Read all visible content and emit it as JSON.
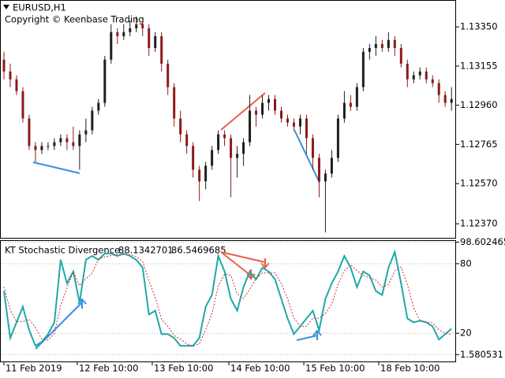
{
  "chart_data": [
    {
      "type": "candlestick",
      "title": "EURUSD,H1",
      "subtitle": "Copyright © Keenbase Trading",
      "up_color": "#1e1e1e",
      "down_color": "#8b1a1a",
      "open": [
        1.13187,
        1.13128,
        1.13089,
        1.1303,
        1.12894,
        1.12757,
        1.12737,
        1.12757,
        1.12757,
        1.12776,
        1.12796,
        1.12776,
        1.12757,
        1.12815,
        1.12835,
        1.12933,
        1.12972,
        1.13187,
        1.13324,
        1.13304,
        1.13324,
        1.13343,
        1.13363,
        1.13343,
        1.13245,
        1.13304,
        1.13167,
        1.1305,
        1.12894,
        1.12815,
        1.12757,
        1.12639,
        1.12581,
        1.12659,
        1.12737,
        1.12815,
        1.12796,
        1.12698,
        1.12718,
        1.12776,
        1.12933,
        1.12913,
        1.12972,
        1.12991,
        1.12933,
        1.12894,
        1.12874,
        1.12854,
        1.12894,
        1.12796,
        1.12698,
        1.12581,
        1.1262,
        1.12698,
        1.12894,
        1.12972,
        1.12952,
        1.1305,
        1.13226,
        1.13245,
        1.13265,
        1.13245,
        1.13285,
        1.13245,
        1.13167,
        1.13089,
        1.13109,
        1.13128,
        1.13089,
        1.1307,
        1.13011,
        1.12972
      ],
      "close": [
        1.13128,
        1.13089,
        1.1303,
        1.12894,
        1.12757,
        1.12737,
        1.12757,
        1.12757,
        1.12776,
        1.12796,
        1.12776,
        1.12757,
        1.12815,
        1.12835,
        1.12933,
        1.12972,
        1.13187,
        1.13324,
        1.13304,
        1.13324,
        1.13343,
        1.13363,
        1.13343,
        1.13245,
        1.13304,
        1.13167,
        1.1305,
        1.12894,
        1.12815,
        1.12757,
        1.12639,
        1.12581,
        1.12659,
        1.12737,
        1.12815,
        1.12796,
        1.12698,
        1.12718,
        1.12776,
        1.12933,
        1.12913,
        1.12972,
        1.12991,
        1.12933,
        1.12894,
        1.12874,
        1.12854,
        1.12894,
        1.12796,
        1.12698,
        1.12581,
        1.1262,
        1.12698,
        1.12894,
        1.12972,
        1.12952,
        1.1305,
        1.13226,
        1.13245,
        1.13265,
        1.13245,
        1.13285,
        1.13245,
        1.13167,
        1.13089,
        1.13109,
        1.13128,
        1.13089,
        1.1307,
        1.13011,
        1.12972,
        1.12991
      ],
      "high": [
        1.13226,
        1.13167,
        1.13109,
        1.1305,
        1.12913,
        1.12776,
        1.12776,
        1.12776,
        1.12796,
        1.12815,
        1.12815,
        1.12854,
        1.12835,
        1.12894,
        1.12952,
        1.12991,
        1.13206,
        1.13363,
        1.13343,
        1.13363,
        1.13382,
        1.13402,
        1.13382,
        1.13363,
        1.13324,
        1.13324,
        1.13187,
        1.1307,
        1.12933,
        1.12835,
        1.12776,
        1.12659,
        1.12678,
        1.12757,
        1.12835,
        1.12835,
        1.12815,
        1.12757,
        1.12796,
        1.13011,
        1.12952,
        1.13011,
        1.13011,
        1.13011,
        1.12952,
        1.12913,
        1.12894,
        1.12913,
        1.12913,
        1.12815,
        1.12718,
        1.12639,
        1.12737,
        1.12913,
        1.1303,
        1.13011,
        1.1307,
        1.13245,
        1.13265,
        1.13304,
        1.13285,
        1.13324,
        1.13304,
        1.13265,
        1.13187,
        1.13128,
        1.13148,
        1.13148,
        1.13109,
        1.13089,
        1.1303,
        1.1305
      ],
      "low": [
        1.13089,
        1.1305,
        1.13011,
        1.12874,
        1.12737,
        1.12678,
        1.12718,
        1.12737,
        1.12737,
        1.12757,
        1.12737,
        1.12737,
        1.12639,
        1.12776,
        1.12815,
        1.12913,
        1.12952,
        1.13167,
        1.13265,
        1.13285,
        1.13304,
        1.13324,
        1.13304,
        1.13206,
        1.13226,
        1.13128,
        1.13011,
        1.12854,
        1.12776,
        1.12718,
        1.126,
        1.12483,
        1.12542,
        1.12639,
        1.12718,
        1.12757,
        1.12502,
        1.126,
        1.12659,
        1.12757,
        1.12854,
        1.12894,
        1.12933,
        1.12913,
        1.12874,
        1.12854,
        1.12835,
        1.12815,
        1.12718,
        1.12639,
        1.12502,
        1.12327,
        1.126,
        1.12678,
        1.12874,
        1.12933,
        1.12933,
        1.1303,
        1.13187,
        1.13206,
        1.13226,
        1.13226,
        1.13206,
        1.13148,
        1.1305,
        1.1307,
        1.13089,
        1.1307,
        1.1305,
        1.12972,
        1.12952,
        1.12933
      ],
      "xlim": [
        -0.5,
        71.6
      ],
      "ylim": [
        1.123,
        1.1348
      ],
      "yticks": [
        {
          "value": 1.1335,
          "label": "1.13350"
        },
        1.13155,
        {
          "value": 1.1296,
          "label": "1.12960"
        },
        1.12765,
        {
          "value": 1.1257,
          "label": "1.12570"
        },
        {
          "value": 1.1237,
          "label": "1.12370"
        }
      ]
    },
    {
      "type": "line",
      "title": "KT Stochastic Divergence",
      "header_values": [
        88.1342701,
        86.5469685
      ],
      "series": [
        {
          "name": "Main",
          "color": "#20a8a8",
          "dash": false,
          "values": [
            56.4,
            15.9,
            29.4,
            42.9,
            22.7,
            9.2,
            12.6,
            19.3,
            29.4,
            83.4,
            63.1,
            73.3,
            46.3,
            83.4,
            86.7,
            83.4,
            88.8,
            88.8,
            86.7,
            88.8,
            86.7,
            83.4,
            76.6,
            36.2,
            39.5,
            19.3,
            19.3,
            15.9,
            9.2,
            9.2,
            9.2,
            15.9,
            42.9,
            53.0,
            86.7,
            73.3,
            49.7,
            39.5,
            59.8,
            73.3,
            66.5,
            76.6,
            73.3,
            66.5,
            49.7,
            32.8,
            19.3,
            26.0,
            32.8,
            39.5,
            22.7,
            49.7,
            63.1,
            73.3,
            86.7,
            76.6,
            59.8,
            73.3,
            69.9,
            56.4,
            53.0,
            76.6,
            90.1,
            63.1,
            32.8,
            29.4,
            30.8,
            29.4,
            26.0,
            14.6,
            19.3,
            24.0
          ]
        },
        {
          "name": "Signal",
          "color": "#d03030",
          "dash": true,
          "values": [
            60,
            40,
            30,
            30,
            32,
            25,
            15,
            14,
            20,
            44,
            59,
            73,
            61,
            67,
            72,
            84,
            86,
            87,
            88,
            88,
            88,
            86,
            82,
            65,
            51,
            32,
            26,
            18,
            15,
            11,
            9,
            11,
            23,
            37,
            61,
            71,
            70,
            54,
            50,
            58,
            67,
            72,
            72,
            72,
            63,
            50,
            33,
            26,
            26,
            33,
            33,
            37,
            45,
            62,
            74,
            79,
            74,
            70,
            68,
            66,
            60,
            62,
            74,
            77,
            62,
            42,
            31,
            30,
            29,
            23,
            20,
            19
          ]
        }
      ],
      "xlim": [
        -0.5,
        71.6
      ],
      "ylim": [
        -4.3,
        99.6
      ],
      "yticks": [
        98.602465,
        80,
        20,
        1.580531
      ],
      "xticks": [
        {
          "value": 0,
          "label": "11 Feb 2019"
        },
        {
          "value": 11.64,
          "label": "12 Feb 10:00"
        },
        {
          "value": 23.53,
          "label": "13 Feb 10:00"
        },
        {
          "value": 35.68,
          "label": "14 Feb 10:00"
        },
        {
          "value": 47.57,
          "label": "15 Feb 10:00"
        },
        {
          "value": 59.46,
          "label": "18 Feb 10:00"
        }
      ]
    }
  ]
}
